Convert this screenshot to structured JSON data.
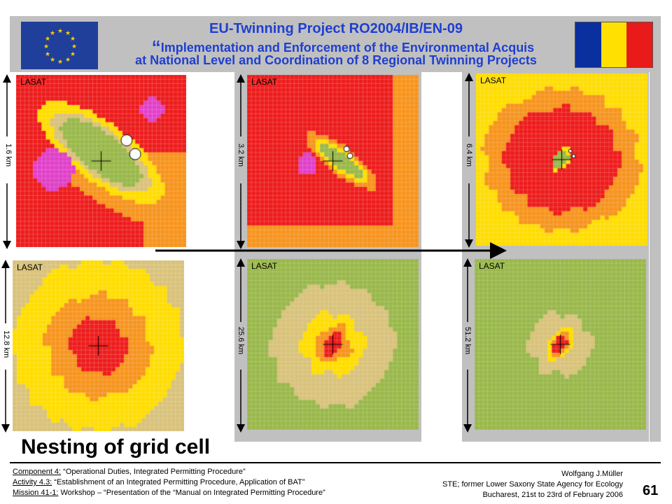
{
  "header": {
    "line1": "EU-Twinning  Project  RO2004/IB/EN-09",
    "line2_quote": "“",
    "line2": "Implementation and Enforcement of the Environmental Acquis",
    "line3": "at National Level and Coordination of 8 Regional Twinning Projects"
  },
  "panels": [
    {
      "label": "LASAT",
      "scale": "1.6 km"
    },
    {
      "label": "LASAT",
      "scale": "3.2 km"
    },
    {
      "label": "LASAT",
      "scale": "6.4 km"
    },
    {
      "label": "LASAT",
      "scale": "12.8 km"
    },
    {
      "label": "LASAT",
      "scale": "25.6 km"
    },
    {
      "label": "LASAT",
      "scale": "51.2 km"
    }
  ],
  "slide_title": "Nesting of grid cell",
  "footer": {
    "component_label": "Component 4:",
    "component_text": " “Operational Duties, Integrated Permitting Procedure”",
    "activity_label": "Activity 4.3:",
    "activity_text": " “Establishment of an Integrated Permitting Procedure, Application of BAT”",
    "mission_label": "Mission 41-1:",
    "mission_text": " Workshop – “Presentation of the “Manual on Integrated Permitting Procedure”",
    "author": "Wolfgang J.Müller",
    "affiliation": "STE;  former Lower Saxony State Agency for Ecology",
    "place_date": "Bucharest, 21st to 23rd of February 2006",
    "page_number": "61"
  },
  "colors": {
    "red": "#ee1c1c",
    "orange": "#f7941d",
    "yellow": "#ffdd00",
    "tan": "#d9c27a",
    "green": "#99b84a",
    "magenta": "#e040c8",
    "title_blue": "#1f3fd0"
  }
}
